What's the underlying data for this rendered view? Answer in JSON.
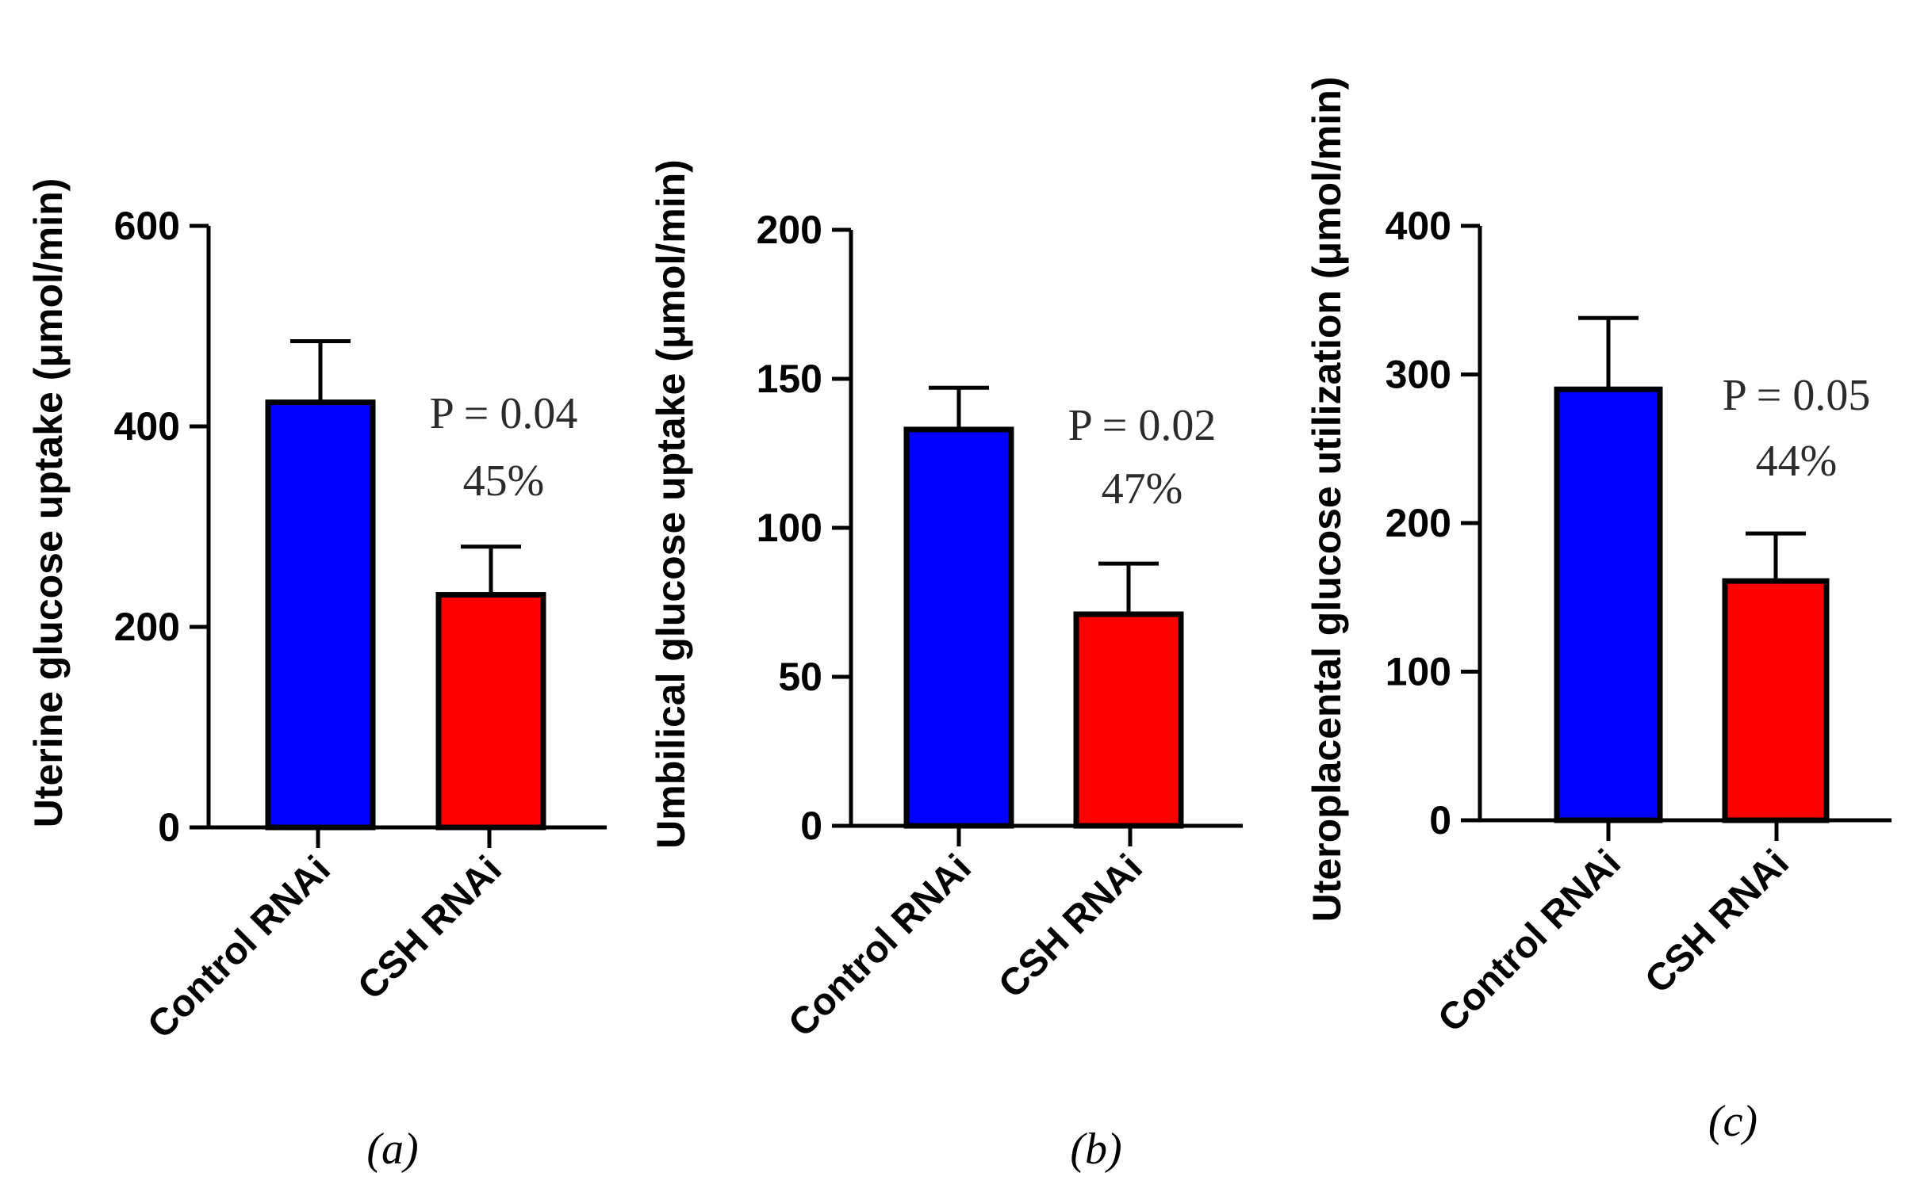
{
  "colors": {
    "control": "#0000ff",
    "csh": "#ff0000",
    "axis": "#000000"
  },
  "chart_data": [
    {
      "type": "bar",
      "panel_label": "(a)",
      "ylabel": "Uterine glucose uptake (μmol/min)",
      "categories": [
        "Control RNAi",
        "CSH RNAi"
      ],
      "values": [
        424,
        232
      ],
      "errors": [
        61,
        48
      ],
      "ylim": [
        0,
        600
      ],
      "yticks": [
        0,
        200,
        400,
        600
      ],
      "p_label": "P = 0.04",
      "pct_label": "45%"
    },
    {
      "type": "bar",
      "panel_label": "(b)",
      "ylabel": "Umbilical glucose uptake (μmol/min)",
      "categories": [
        "Control RNAi",
        "CSH RNAi"
      ],
      "values": [
        133,
        71
      ],
      "errors": [
        14,
        17
      ],
      "ylim": [
        0,
        200
      ],
      "yticks": [
        0,
        50,
        100,
        150,
        200
      ],
      "p_label": "P = 0.02",
      "pct_label": "47%"
    },
    {
      "type": "bar",
      "panel_label": "(c)",
      "ylabel": "Uteroplacental glucose utilization (μmol/min)",
      "categories": [
        "Control RNAi",
        "CSH RNAi"
      ],
      "values": [
        290,
        161
      ],
      "errors": [
        48,
        32
      ],
      "ylim": [
        0,
        400
      ],
      "yticks": [
        0,
        100,
        200,
        300,
        400
      ],
      "p_label": "P = 0.05",
      "pct_label": "44%"
    }
  ]
}
